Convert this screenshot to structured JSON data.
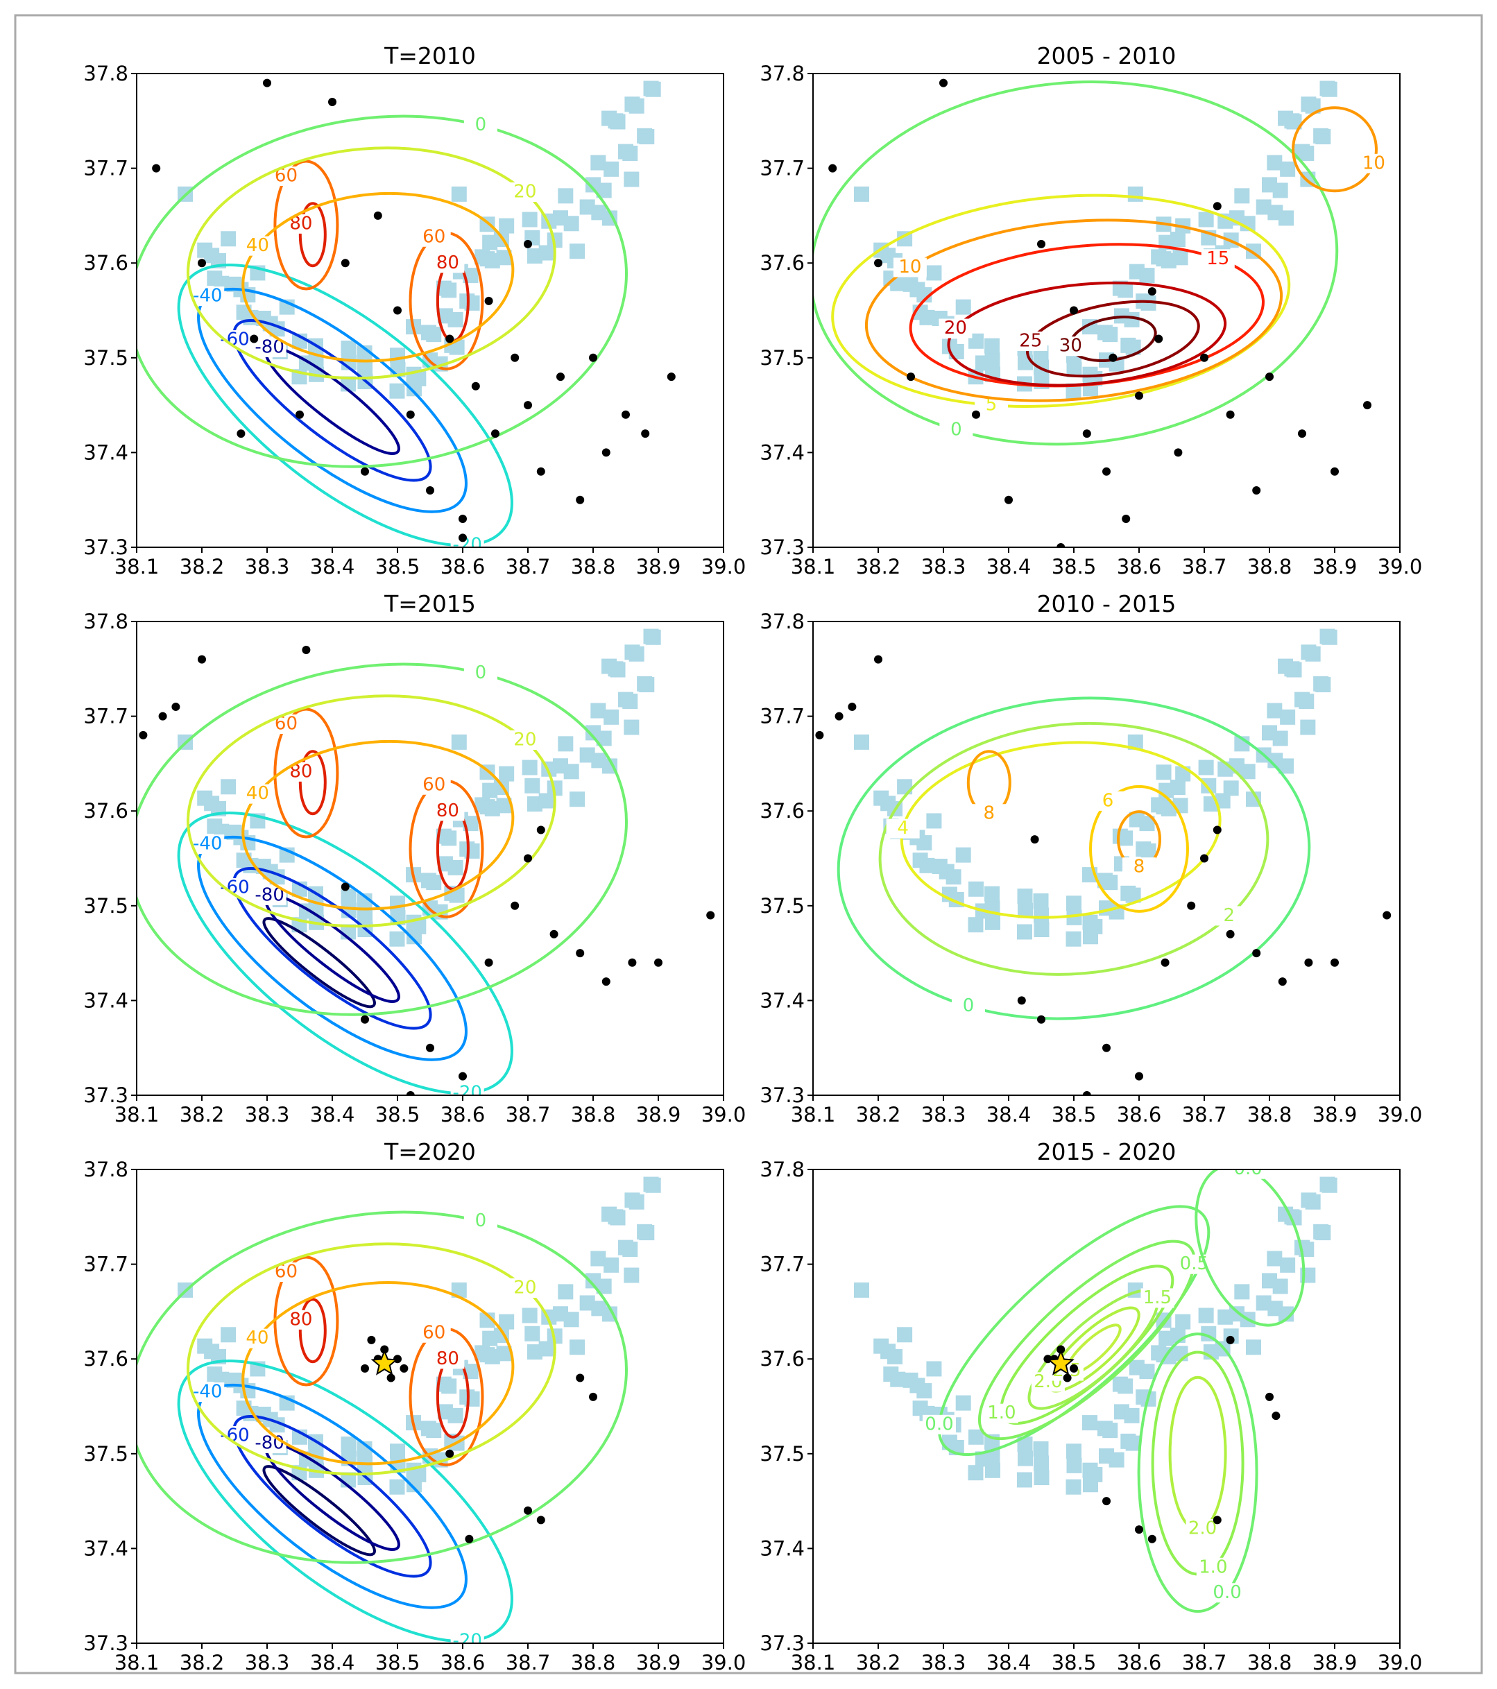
{
  "chart_data": [
    {
      "type": "contour",
      "title": "T=2010",
      "xlim": [
        38.1,
        39.0
      ],
      "ylim": [
        37.3,
        37.8
      ],
      "xticks": [
        38.1,
        38.2,
        38.3,
        38.4,
        38.5,
        38.6,
        38.7,
        38.8,
        38.9,
        {
          "value": 39,
          "label": "39.0"
        }
      ],
      "yticks": [
        37.3,
        37.4,
        37.5,
        37.6,
        37.7,
        37.8
      ],
      "levels": [
        -80,
        -60,
        -40,
        -20,
        0,
        20,
        40,
        60,
        80
      ],
      "colors": [
        "#000090",
        "#0030e0",
        "#0090ff",
        "#20e0d0",
        "#70f070",
        "#d0f030",
        "#ffb000",
        "#ff7000",
        "#e02000"
      ],
      "points": {
        "x": [
          38.13,
          38.2,
          38.26,
          38.3,
          38.35,
          38.42,
          38.45,
          38.5,
          38.55,
          38.6,
          38.62,
          38.65,
          38.68,
          38.7,
          38.72,
          38.75,
          38.78,
          38.8,
          38.85,
          38.88,
          38.92,
          38.6,
          38.58,
          38.47,
          38.52,
          38.4,
          38.28,
          38.64,
          38.7,
          38.82
        ],
        "y": [
          37.7,
          37.6,
          37.42,
          37.79,
          37.44,
          37.6,
          37.38,
          37.55,
          37.36,
          37.33,
          37.47,
          37.42,
          37.5,
          37.45,
          37.38,
          37.48,
          37.35,
          37.5,
          37.44,
          37.42,
          37.48,
          37.31,
          37.52,
          37.65,
          37.44,
          37.77,
          37.52,
          37.56,
          37.62,
          37.4
        ]
      }
    },
    {
      "type": "contour",
      "title": "2005 - 2010",
      "xlim": [
        38.1,
        39.0
      ],
      "ylim": [
        37.3,
        37.8
      ],
      "xticks": [
        38.1,
        38.2,
        38.3,
        38.4,
        38.5,
        38.6,
        38.7,
        38.8,
        38.9,
        {
          "value": 39,
          "label": "39.0"
        }
      ],
      "yticks": [
        37.3,
        37.4,
        37.5,
        37.6,
        37.7,
        37.8
      ],
      "levels": [
        0,
        5,
        10,
        15,
        20,
        25,
        30
      ],
      "colors": [
        "#70f070",
        "#e8f020",
        "#ff9800",
        "#ff2000",
        "#c00000",
        "#900000",
        "#700000"
      ],
      "points": {
        "x": [
          38.13,
          38.2,
          38.25,
          38.3,
          38.4,
          38.45,
          38.5,
          38.52,
          38.55,
          38.58,
          38.6,
          38.63,
          38.66,
          38.7,
          38.74,
          38.78,
          38.8,
          38.85,
          38.9,
          38.95,
          38.35,
          38.48,
          38.62,
          38.72,
          38.56
        ],
        "y": [
          37.7,
          37.6,
          37.48,
          37.79,
          37.35,
          37.62,
          37.55,
          37.42,
          37.38,
          37.33,
          37.46,
          37.52,
          37.4,
          37.5,
          37.44,
          37.36,
          37.48,
          37.42,
          37.38,
          37.45,
          37.44,
          37.3,
          37.57,
          37.66,
          37.5
        ]
      }
    },
    {
      "type": "contour",
      "title": "T=2015",
      "xlim": [
        38.1,
        39.0
      ],
      "ylim": [
        37.3,
        37.8
      ],
      "xticks": [
        38.1,
        38.2,
        38.3,
        38.4,
        38.5,
        38.6,
        38.7,
        38.8,
        38.9,
        {
          "value": 39,
          "label": "39.0"
        }
      ],
      "yticks": [
        37.3,
        37.4,
        37.5,
        37.6,
        37.7,
        37.8
      ],
      "levels": [
        -100,
        -80,
        -60,
        -40,
        -20,
        0,
        20,
        40,
        60,
        80
      ],
      "colors": [
        "#000060",
        "#000090",
        "#0030e0",
        "#0090ff",
        "#20e0d0",
        "#70f070",
        "#d0f030",
        "#ffb000",
        "#ff7000",
        "#e02000"
      ],
      "points": {
        "x": [
          38.11,
          38.14,
          38.16,
          38.2,
          38.36,
          38.45,
          38.52,
          38.6,
          38.64,
          38.68,
          38.7,
          38.74,
          38.78,
          38.82,
          38.86,
          38.9,
          38.98,
          38.55,
          38.42,
          38.72
        ],
        "y": [
          37.68,
          37.7,
          37.71,
          37.76,
          37.77,
          37.38,
          37.3,
          37.32,
          37.44,
          37.5,
          37.55,
          37.47,
          37.45,
          37.42,
          37.44,
          37.44,
          37.49,
          37.35,
          37.52,
          37.58
        ]
      }
    },
    {
      "type": "contour",
      "title": "2010 - 2015",
      "xlim": [
        38.1,
        39.0
      ],
      "ylim": [
        37.3,
        37.8
      ],
      "xticks": [
        38.1,
        38.2,
        38.3,
        38.4,
        38.5,
        38.6,
        38.7,
        38.8,
        38.9,
        {
          "value": 39,
          "label": "39.0"
        }
      ],
      "yticks": [
        37.3,
        37.4,
        37.5,
        37.6,
        37.7,
        37.8
      ],
      "levels": [
        0,
        2,
        4,
        6,
        8
      ],
      "colors": [
        "#60f080",
        "#a8f050",
        "#e8f020",
        "#ffd000",
        "#ffa000"
      ],
      "points": {
        "x": [
          38.11,
          38.14,
          38.16,
          38.2,
          38.42,
          38.45,
          38.52,
          38.6,
          38.64,
          38.68,
          38.7,
          38.74,
          38.78,
          38.82,
          38.86,
          38.9,
          38.98,
          38.55,
          38.44,
          38.72
        ],
        "y": [
          37.68,
          37.7,
          37.71,
          37.76,
          37.4,
          37.38,
          37.3,
          37.32,
          37.44,
          37.5,
          37.55,
          37.47,
          37.45,
          37.42,
          37.44,
          37.44,
          37.49,
          37.35,
          37.57,
          37.58
        ]
      }
    },
    {
      "type": "contour",
      "title": "T=2020",
      "xlim": [
        38.1,
        39.0
      ],
      "ylim": [
        37.3,
        37.8
      ],
      "xticks": [
        38.1,
        38.2,
        38.3,
        38.4,
        38.5,
        38.6,
        38.7,
        38.8,
        38.9,
        {
          "value": 39,
          "label": "39.0"
        }
      ],
      "yticks": [
        37.3,
        37.4,
        37.5,
        37.6,
        37.7,
        37.8
      ],
      "levels": [
        -100,
        -80,
        -60,
        -40,
        -20,
        0,
        20,
        40,
        60,
        80
      ],
      "colors": [
        "#000060",
        "#000090",
        "#0030e0",
        "#0090ff",
        "#20e0d0",
        "#70f070",
        "#d0f030",
        "#ffb000",
        "#ff7000",
        "#e02000"
      ],
      "points": {
        "x": [
          38.47,
          38.48,
          38.49,
          38.5,
          38.46,
          38.45,
          38.51,
          38.72,
          38.7,
          38.78,
          38.8,
          38.61,
          38.58
        ],
        "y": [
          37.6,
          37.61,
          37.58,
          37.6,
          37.62,
          37.59,
          37.59,
          37.43,
          37.44,
          37.58,
          37.56,
          37.41,
          37.5
        ]
      },
      "star": {
        "x": 38.48,
        "y": 37.595,
        "color": "#ffd700"
      }
    },
    {
      "type": "contour",
      "title": "2015 - 2020",
      "xlim": [
        38.1,
        39.0
      ],
      "ylim": [
        37.3,
        37.8
      ],
      "xticks": [
        38.1,
        38.2,
        38.3,
        38.4,
        38.5,
        38.6,
        38.7,
        38.8,
        38.9,
        {
          "value": 39,
          "label": "39.0"
        }
      ],
      "yticks": [
        37.3,
        37.4,
        37.5,
        37.6,
        37.7,
        37.8
      ],
      "levels": [
        {
          "value": 0,
          "label": "0.0"
        },
        0.5,
        {
          "value": 1,
          "label": "1.0"
        },
        1.5,
        {
          "value": 2,
          "label": "2.0"
        },
        2.5
      ],
      "colors": [
        "#70f070",
        "#80f060",
        "#90f050",
        "#a0f050",
        "#b0f040",
        "#c0f040"
      ],
      "points": {
        "x": [
          38.47,
          38.48,
          38.49,
          38.46,
          38.5,
          38.8,
          38.81,
          38.72,
          38.6,
          38.62,
          38.55,
          38.74
        ],
        "y": [
          37.6,
          37.61,
          37.58,
          37.6,
          37.59,
          37.56,
          37.54,
          37.43,
          37.42,
          37.41,
          37.45,
          37.62
        ]
      },
      "star": {
        "x": 38.48,
        "y": 37.595,
        "color": "#ffd700"
      }
    }
  ]
}
